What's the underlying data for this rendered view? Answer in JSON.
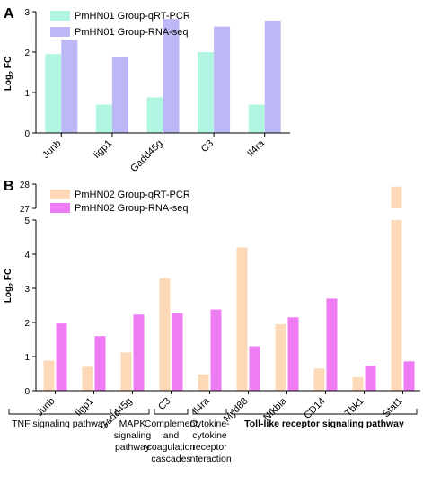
{
  "colors": {
    "panel_a_qpcr": "#b3f5e3",
    "panel_a_rnaseq": "#bbb8f5",
    "panel_b_qpcr": "#fdd9b7",
    "panel_b_rnaseq": "#ee7cf2"
  },
  "chart_data": [
    {
      "type": "bar",
      "panel_label": "A",
      "ylabel_main": "Log",
      "ylabel_sub": "2",
      "ylabel_tail": " FC",
      "categories": [
        "Junb",
        "Iigp1",
        "Gadd45g",
        "C3",
        "Il4ra"
      ],
      "series": [
        {
          "name": "PmHN01 Group-qRT-PCR",
          "values": [
            1.95,
            0.7,
            0.88,
            2.0,
            0.7
          ]
        },
        {
          "name": "PmHN01 Group-RNA-seq",
          "values": [
            2.3,
            1.87,
            2.82,
            2.63,
            2.78
          ]
        }
      ],
      "ylim": [
        0,
        3
      ],
      "yticks": [
        "0",
        "1",
        "2",
        "3"
      ],
      "legend": "top-left",
      "grid": false
    },
    {
      "type": "bar",
      "panel_label": "B",
      "ylabel_main": "Log",
      "ylabel_sub": "2",
      "ylabel_tail": " FC",
      "categories": [
        "Junb",
        "Iigp1",
        "Gadd45g",
        "C3",
        "Il4ra",
        "Myd88",
        "Nfkbia",
        "CD14",
        "Tbk1",
        "Stat1"
      ],
      "series": [
        {
          "name": "PmHN02 Group-qRT-PCR",
          "values": [
            0.88,
            0.7,
            1.12,
            3.3,
            0.48,
            4.2,
            1.95,
            0.65,
            0.4,
            27.9
          ]
        },
        {
          "name": "PmHN02 Group-RNA-seq",
          "values": [
            1.97,
            1.6,
            2.23,
            2.27,
            2.38,
            1.3,
            2.15,
            2.7,
            0.73,
            0.86
          ]
        }
      ],
      "ylim": [
        0,
        28
      ],
      "axis_break": {
        "lower": [
          0,
          5
        ],
        "upper": [
          27,
          28
        ]
      },
      "yticks": [
        "0",
        "1",
        "2",
        "3",
        "4",
        "5",
        "27",
        "28"
      ],
      "legend": "top-left",
      "grid": false,
      "pathway_groups": [
        {
          "lines": [
            "TNF signaling pathway"
          ],
          "bold": false
        },
        {
          "lines": [
            "MAPK",
            "signaling",
            "pathway"
          ],
          "bold": false
        },
        {
          "lines": [
            "Complement",
            "and",
            "coagulation",
            "cascades"
          ],
          "bold": false
        },
        {
          "lines": [
            "Cytokine-",
            "cytokine",
            "receptor",
            "interaction"
          ],
          "bold": false
        },
        {
          "lines": [
            "Toll-like receptor signaling pathway"
          ],
          "bold": true
        }
      ]
    }
  ]
}
